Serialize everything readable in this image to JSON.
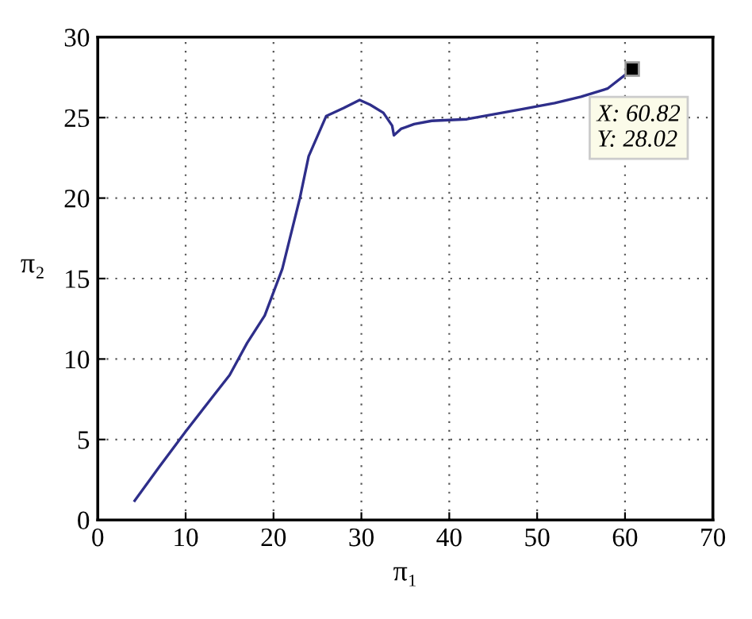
{
  "chart_data": {
    "type": "line",
    "xlabel": "π₁",
    "ylabel": "π₂",
    "x": [
      4.2,
      7,
      10,
      13,
      15,
      17,
      19,
      21,
      23,
      24,
      26,
      28,
      29.8,
      31,
      32.5,
      33.5,
      33.7,
      34.5,
      36,
      38,
      42,
      45,
      48,
      52,
      55,
      58,
      60.82
    ],
    "series": [
      {
        "color": "#2e2e8a",
        "values": [
          1.2,
          3.3,
          5.5,
          7.6,
          9,
          11,
          12.7,
          15.6,
          20,
          22.6,
          25.1,
          25.6,
          26.1,
          25.8,
          25.3,
          24.5,
          23.9,
          24.3,
          24.6,
          24.8,
          24.9,
          25.2,
          25.5,
          25.9,
          26.3,
          26.8,
          28
        ]
      }
    ],
    "xlim": [
      0,
      70
    ],
    "ylim": [
      0,
      30
    ],
    "xticks": [
      0,
      10,
      20,
      30,
      40,
      50,
      60,
      70
    ],
    "yticks": [
      0,
      5,
      10,
      15,
      20,
      25,
      30
    ],
    "grid": true,
    "line_style": "solid",
    "marker": "none",
    "annotations": [
      {
        "text": "X: 60.82\nY: 28.02",
        "x": 60.82,
        "y": 28.02
      }
    ]
  }
}
